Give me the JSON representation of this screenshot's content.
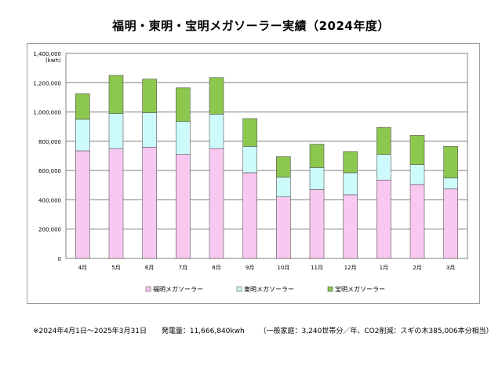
{
  "title": "福明・東明・宝明メガソーラー実績（2024年度）",
  "footer": {
    "period": "※2024年4月1日～2025年3月31日",
    "generation": "発電量：11,666,840kwh",
    "equivalent": "（一般家庭：3,240世帯分／年、CO2削減：スギの木385,006本分相当）"
  },
  "chart_data": {
    "type": "bar",
    "stacked": true,
    "title": "福明・東明・宝明メガソーラー実績（2024年度）",
    "ylabel": "(kwh)",
    "ylim": [
      0,
      1400000
    ],
    "yticks": [
      "0",
      "200,000",
      "400,000",
      "600,000",
      "800,000",
      "1,000,000",
      "1,200,000",
      "1,400,000"
    ],
    "grid": true,
    "legend_position": "bottom",
    "categories": [
      "4月",
      "5月",
      "6月",
      "7月",
      "8月",
      "9月",
      "10月",
      "11月",
      "12月",
      "1月",
      "2月",
      "3月"
    ],
    "series": [
      {
        "name": "福明メガソーラー",
        "color": "#f9c8f1",
        "values": [
          735000,
          750000,
          760000,
          710000,
          750000,
          585000,
          420000,
          470000,
          435000,
          535000,
          505000,
          475000
        ]
      },
      {
        "name": "東明メガソーラー",
        "color": "#cdfbfb",
        "values": [
          215000,
          240000,
          235000,
          225000,
          235000,
          180000,
          135000,
          150000,
          150000,
          175000,
          135000,
          75000
        ]
      },
      {
        "name": "宝明メガソーラー",
        "color": "#8cc74e",
        "values": [
          175000,
          260000,
          230000,
          230000,
          250000,
          190000,
          140000,
          160000,
          145000,
          185000,
          200000,
          215000
        ]
      }
    ]
  }
}
